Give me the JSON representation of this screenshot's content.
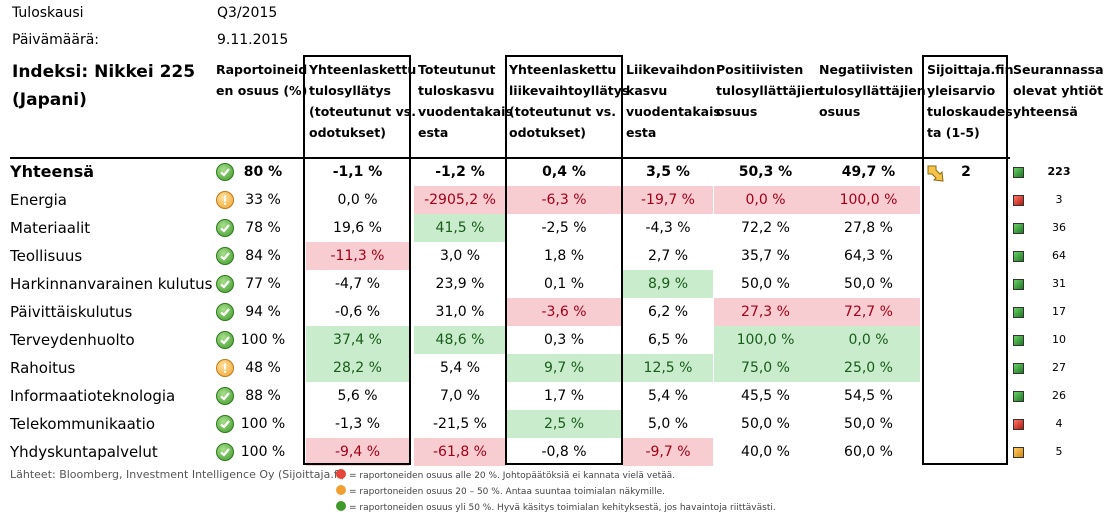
{
  "meta": {
    "period_label": "Tuloskausi",
    "period_value": "Q3/2015",
    "date_label": "Päivämäärä:",
    "date_value": "9.11.2015",
    "index_line1": "Indeksi: Nikkei 225",
    "index_line2": "(Japani)"
  },
  "headers": {
    "reporting": [
      "Raportoineid",
      "en osuus (%)"
    ],
    "eps_surprise": [
      "Yhteenlaskettu",
      "tulosyllätys",
      "(toteutunut vs.",
      "odotukset)"
    ],
    "eps_growth": [
      "Toteutunut",
      "tuloskasvu",
      "vuodentakais",
      "esta"
    ],
    "rev_surprise": [
      "Yhteenlaskettu",
      "liikevaihtoyllätys",
      "(toteutunut vs.",
      "odotukset)"
    ],
    "rev_growth": [
      "Liikevaihdon",
      "kasvu",
      "vuodentakais",
      "esta"
    ],
    "positive": [
      "Positiivisten",
      "tulosyllättäjien",
      "osuus"
    ],
    "negative": [
      "Negatiivisten",
      "tulosyllättäjien",
      "osuus"
    ],
    "sijoittaja": [
      "Sijoittaja.fin",
      "yleisarvio",
      "tuloskaudes",
      "ta (1-5)"
    ],
    "companies": [
      "Seurannassa",
      "olevat yhtiöt",
      "yhteensä"
    ]
  },
  "total": {
    "label": "Yhteensä",
    "reporting": "80 %",
    "eps_surprise": "-1,1 %",
    "eps_growth": "-1,2 %",
    "rev_surprise": "0,4 %",
    "rev_growth": "3,5 %",
    "positive": "50,3 %",
    "negative": "49,7 %",
    "rating": "2",
    "count": "223"
  },
  "rows": [
    {
      "label": "Energia",
      "status": "mid",
      "reporting": "33 %",
      "eps_surprise": "0,0 %",
      "eps_growth": "-2905,2 %",
      "rev_surprise": "-6,3 %",
      "rev_growth": "-19,7 %",
      "positive": "0,0 %",
      "negative": "100,0 %",
      "count": "3",
      "sq": "red"
    },
    {
      "label": "Materiaalit",
      "status": "ok",
      "reporting": "78 %",
      "eps_surprise": "19,6 %",
      "eps_growth": "41,5 %",
      "rev_surprise": "-2,5 %",
      "rev_growth": "-4,3 %",
      "positive": "72,2 %",
      "negative": "27,8 %",
      "count": "36",
      "sq": "green"
    },
    {
      "label": "Teollisuus",
      "status": "ok",
      "reporting": "84 %",
      "eps_surprise": "-11,3 %",
      "eps_growth": "3,0 %",
      "rev_surprise": "1,8 %",
      "rev_growth": "2,7 %",
      "positive": "35,7 %",
      "negative": "64,3 %",
      "count": "64",
      "sq": "green"
    },
    {
      "label": "Harkinnanvarainen kulutus",
      "status": "ok",
      "reporting": "77 %",
      "eps_surprise": "-4,7 %",
      "eps_growth": "23,9 %",
      "rev_surprise": "0,1 %",
      "rev_growth": "8,9 %",
      "positive": "50,0 %",
      "negative": "50,0 %",
      "count": "31",
      "sq": "green"
    },
    {
      "label": "Päivittäiskulutus",
      "status": "ok",
      "reporting": "94 %",
      "eps_surprise": "-0,6 %",
      "eps_growth": "31,0 %",
      "rev_surprise": "-3,6 %",
      "rev_growth": "6,2 %",
      "positive": "27,3 %",
      "negative": "72,7 %",
      "count": "17",
      "sq": "green"
    },
    {
      "label": "Terveydenhuolto",
      "status": "ok",
      "reporting": "100 %",
      "eps_surprise": "37,4 %",
      "eps_growth": "48,6 %",
      "rev_surprise": "0,3 %",
      "rev_growth": "6,5 %",
      "positive": "100,0 %",
      "negative": "0,0 %",
      "count": "10",
      "sq": "green"
    },
    {
      "label": "Rahoitus",
      "status": "mid",
      "reporting": "48 %",
      "eps_surprise": "28,2 %",
      "eps_growth": "5,4 %",
      "rev_surprise": "9,7 %",
      "rev_growth": "12,5 %",
      "positive": "75,0 %",
      "negative": "25,0 %",
      "count": "27",
      "sq": "green"
    },
    {
      "label": "Informaatioteknologia",
      "status": "ok",
      "reporting": "88 %",
      "eps_surprise": "5,6 %",
      "eps_growth": "7,0 %",
      "rev_surprise": "1,7 %",
      "rev_growth": "5,4 %",
      "positive": "45,5 %",
      "negative": "54,5 %",
      "count": "26",
      "sq": "green"
    },
    {
      "label": "Telekommunikaatio",
      "status": "ok",
      "reporting": "100 %",
      "eps_surprise": "-1,3 %",
      "eps_growth": "-21,5 %",
      "rev_surprise": "2,5 %",
      "rev_growth": "5,0 %",
      "positive": "50,0 %",
      "negative": "50,0 %",
      "count": "4",
      "sq": "red"
    },
    {
      "label": "Yhdyskuntapalvelut",
      "status": "ok",
      "reporting": "100 %",
      "eps_surprise": "-9,4 %",
      "eps_growth": "-61,8 %",
      "rev_surprise": "-0,8 %",
      "rev_growth": "-9,7 %",
      "positive": "40,0 %",
      "negative": "60,0 %",
      "count": "5",
      "sq": "orange"
    }
  ],
  "highlights": {
    "red": [
      "1.eps_growth",
      "1.rev_surprise",
      "1.rev_growth",
      "1.positive",
      "1.negative",
      "3.eps_surprise",
      "5.rev_surprise",
      "5.positive",
      "5.negative",
      "10.eps_surprise",
      "10.eps_growth",
      "10.rev_growth"
    ],
    "green": [
      "2.eps_growth",
      "4.rev_growth",
      "6.eps_surprise",
      "6.eps_growth",
      "6.positive",
      "6.negative",
      "7.eps_surprise",
      "7.rev_surprise",
      "7.rev_growth",
      "7.positive",
      "7.negative",
      "9.rev_surprise"
    ]
  },
  "footer": {
    "sources": "Lähteet: Bloomberg, Investment Intelligence Oy (Sijoittaja.fi)",
    "legend_red": "= raportoneiden osuus alle 20 %. Johtopäätöksiä ei kannata vielä vetää.",
    "legend_orange": "= raportoneiden osuus 20 – 50 %. Antaa suuntaa toimialan näkymille.",
    "legend_green": "= raportoneiden osuus yli 50 %. Hyvä käsitys toimialan kehityksestä, jos havaintoja riittävästi."
  },
  "colors": {
    "red_bg": "#f7cdd2",
    "red_text": "#a50018",
    "green_bg": "#c8eccc",
    "green_text": "#1a5c1a"
  },
  "icons": {
    "status_ok": "green-check-icon",
    "status_mid": "orange-alert-icon",
    "rating_arrow": "arrow-down-right-icon"
  }
}
